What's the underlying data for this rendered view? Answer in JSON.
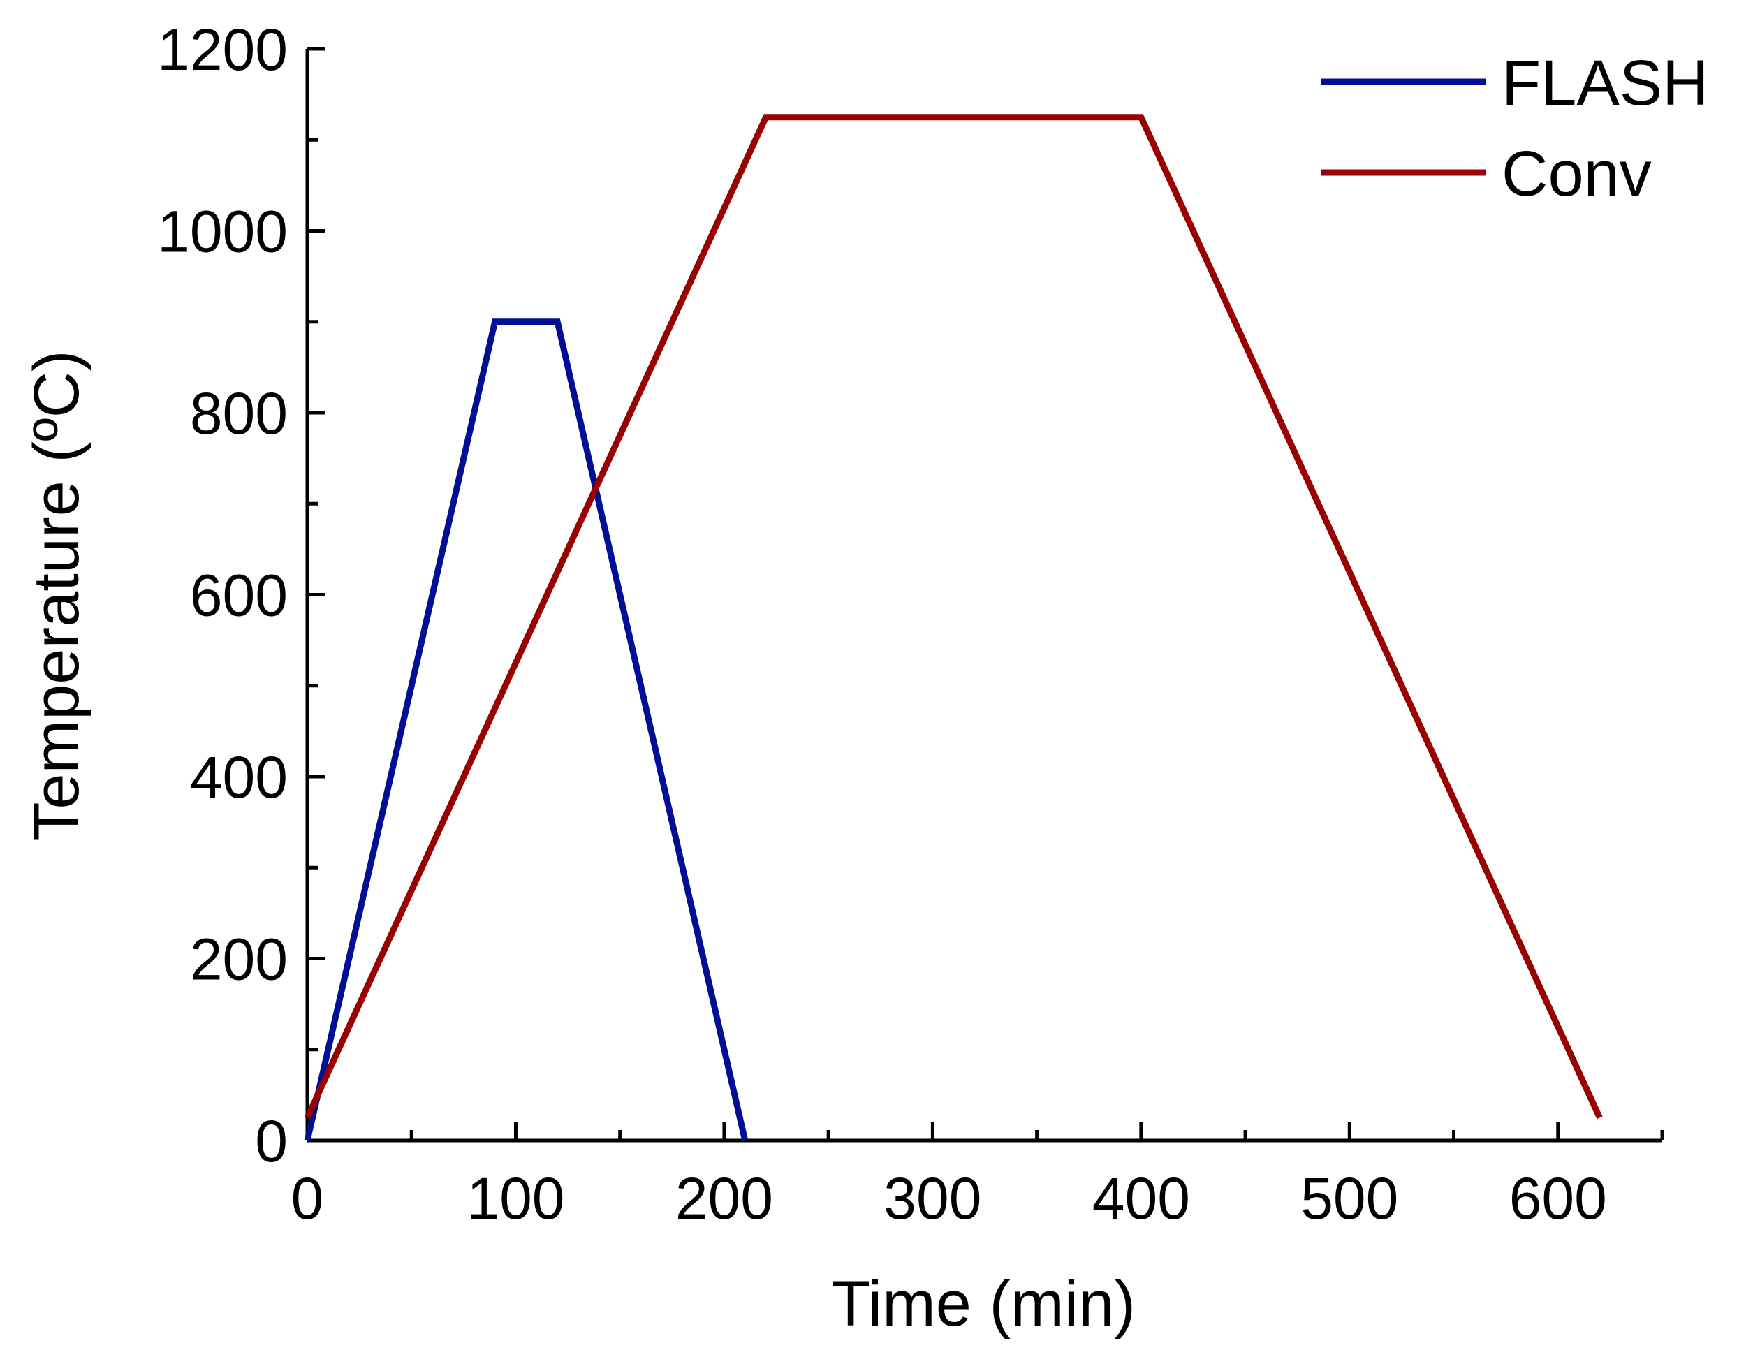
{
  "chart_data": {
    "type": "line",
    "title": "",
    "xlabel": "Time (min)",
    "ylabel": "Temperature (ºC)",
    "xlim": [
      0,
      650
    ],
    "ylim": [
      0,
      1200
    ],
    "x_ticks": [
      0,
      100,
      200,
      300,
      400,
      500,
      600
    ],
    "x_tick_labels": [
      "0",
      "100",
      "200",
      "300",
      "400",
      "500",
      "600"
    ],
    "x_minor_ticks": [
      50,
      150,
      250,
      350,
      450,
      550,
      650
    ],
    "y_ticks": [
      0,
      200,
      400,
      600,
      800,
      1000,
      1200
    ],
    "y_tick_labels": [
      "0",
      "200",
      "400",
      "600",
      "800",
      "1000",
      "1200"
    ],
    "y_minor_ticks": [
      100,
      300,
      500,
      700,
      900,
      1100
    ],
    "grid": false,
    "legend_position": "top-right",
    "series": [
      {
        "name": "FLASH",
        "color": "#000f96",
        "x": [
          0,
          90,
          120,
          210
        ],
        "y": [
          0,
          900,
          900,
          0
        ]
      },
      {
        "name": "Conv",
        "color": "#990000",
        "x": [
          0,
          220,
          400,
          620
        ],
        "y": [
          25,
          1125,
          1125,
          25
        ]
      }
    ]
  }
}
